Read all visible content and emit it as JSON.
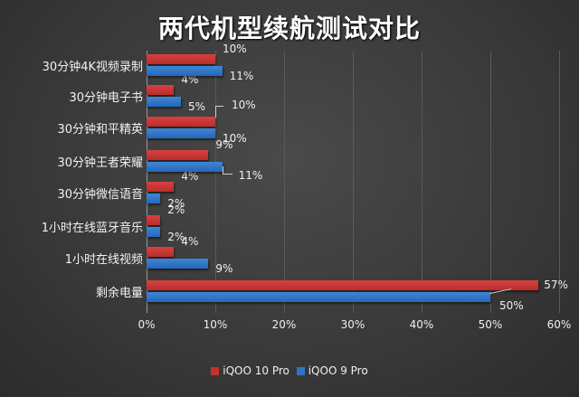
{
  "chart_data": {
    "type": "bar",
    "orientation": "horizontal",
    "title": "两代机型续航测试对比",
    "categories": [
      "30分钟4K视频录制",
      "30分钟电子书",
      "30分钟和平精英",
      "30分钟王者荣耀",
      "30分钟微信语音",
      "1小时在线蓝牙音乐",
      "1小时在线视频",
      "剩余电量"
    ],
    "series": [
      {
        "name": "iQOO 10 Pro",
        "color": "#c8302e",
        "values": [
          10,
          4,
          10,
          9,
          4,
          2,
          4,
          57
        ],
        "labels": [
          "10%",
          "4%",
          "10%",
          "9%",
          "4%",
          "2%",
          "4%",
          "57%"
        ]
      },
      {
        "name": "iQOO 9 Pro",
        "color": "#2f74c8",
        "values": [
          11,
          5,
          10,
          11,
          2,
          2,
          9,
          50
        ],
        "labels": [
          "11%",
          "5%",
          "10%",
          "11%",
          "2%",
          "2%",
          "9%",
          "50%"
        ]
      }
    ],
    "xlabel": "",
    "ylabel": "",
    "xlim": [
      0,
      60
    ],
    "xticks": [
      "0%",
      "10%",
      "20%",
      "30%",
      "40%",
      "50%",
      "60%"
    ],
    "grid": true,
    "legend_position": "bottom"
  }
}
